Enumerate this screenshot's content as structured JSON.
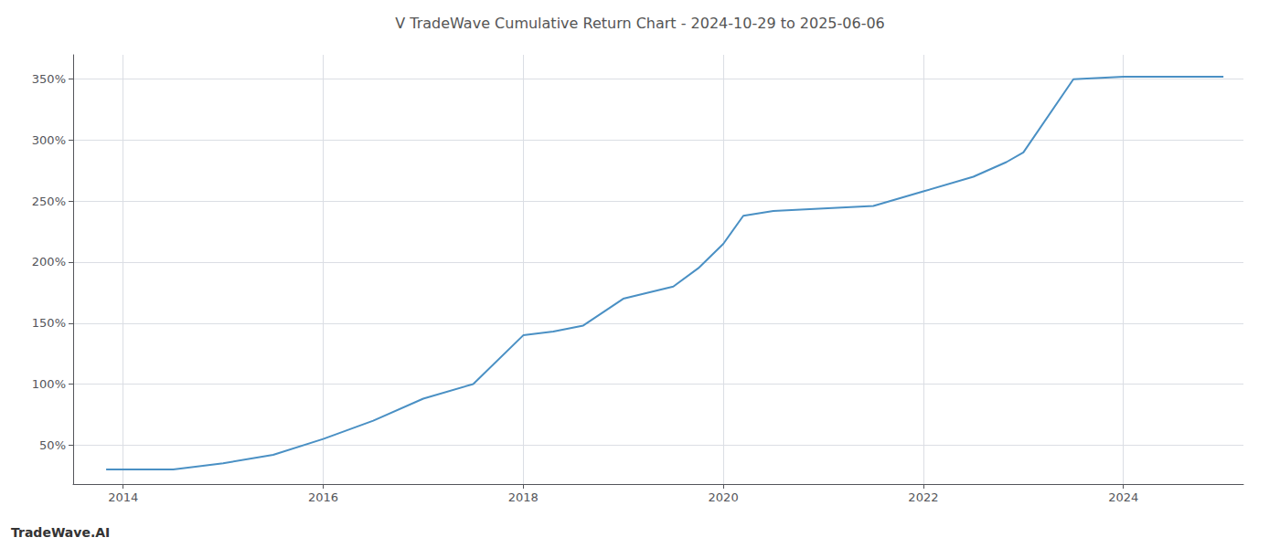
{
  "chart_data": {
    "type": "line",
    "title": "V TradeWave Cumulative Return Chart - 2024-10-29 to 2025-06-06",
    "annotations": [
      "TradeWave.AI"
    ],
    "x": [
      2013.83,
      2014.0,
      2014.5,
      2015.0,
      2015.5,
      2016.0,
      2016.5,
      2017.0,
      2017.5,
      2018.0,
      2018.3,
      2018.6,
      2019.0,
      2019.5,
      2019.75,
      2020.0,
      2020.2,
      2020.5,
      2021.0,
      2021.5,
      2022.0,
      2022.5,
      2022.83,
      2023.0,
      2023.5,
      2024.0,
      2024.5,
      2025.0
    ],
    "values": [
      30,
      30,
      30,
      35,
      42,
      55,
      70,
      88,
      100,
      140,
      143,
      148,
      170,
      180,
      195,
      215,
      238,
      242,
      244,
      246,
      258,
      270,
      282,
      290,
      350,
      352,
      352,
      352
    ],
    "color": "#4A90C4",
    "xlim": [
      2013.5,
      2025.2
    ],
    "xticks": [
      2014,
      2016,
      2018,
      2020,
      2022,
      2024
    ],
    "ylim": [
      18,
      370
    ],
    "yticks": [
      {
        "value": 50,
        "label": "50%"
      },
      {
        "value": 100,
        "label": "100%"
      },
      {
        "value": 150,
        "label": "150%"
      },
      {
        "value": 200,
        "label": "200%"
      },
      {
        "value": 250,
        "label": "250%"
      },
      {
        "value": 300,
        "label": "300%"
      },
      {
        "value": 350,
        "label": "350%"
      }
    ],
    "grid": true
  }
}
